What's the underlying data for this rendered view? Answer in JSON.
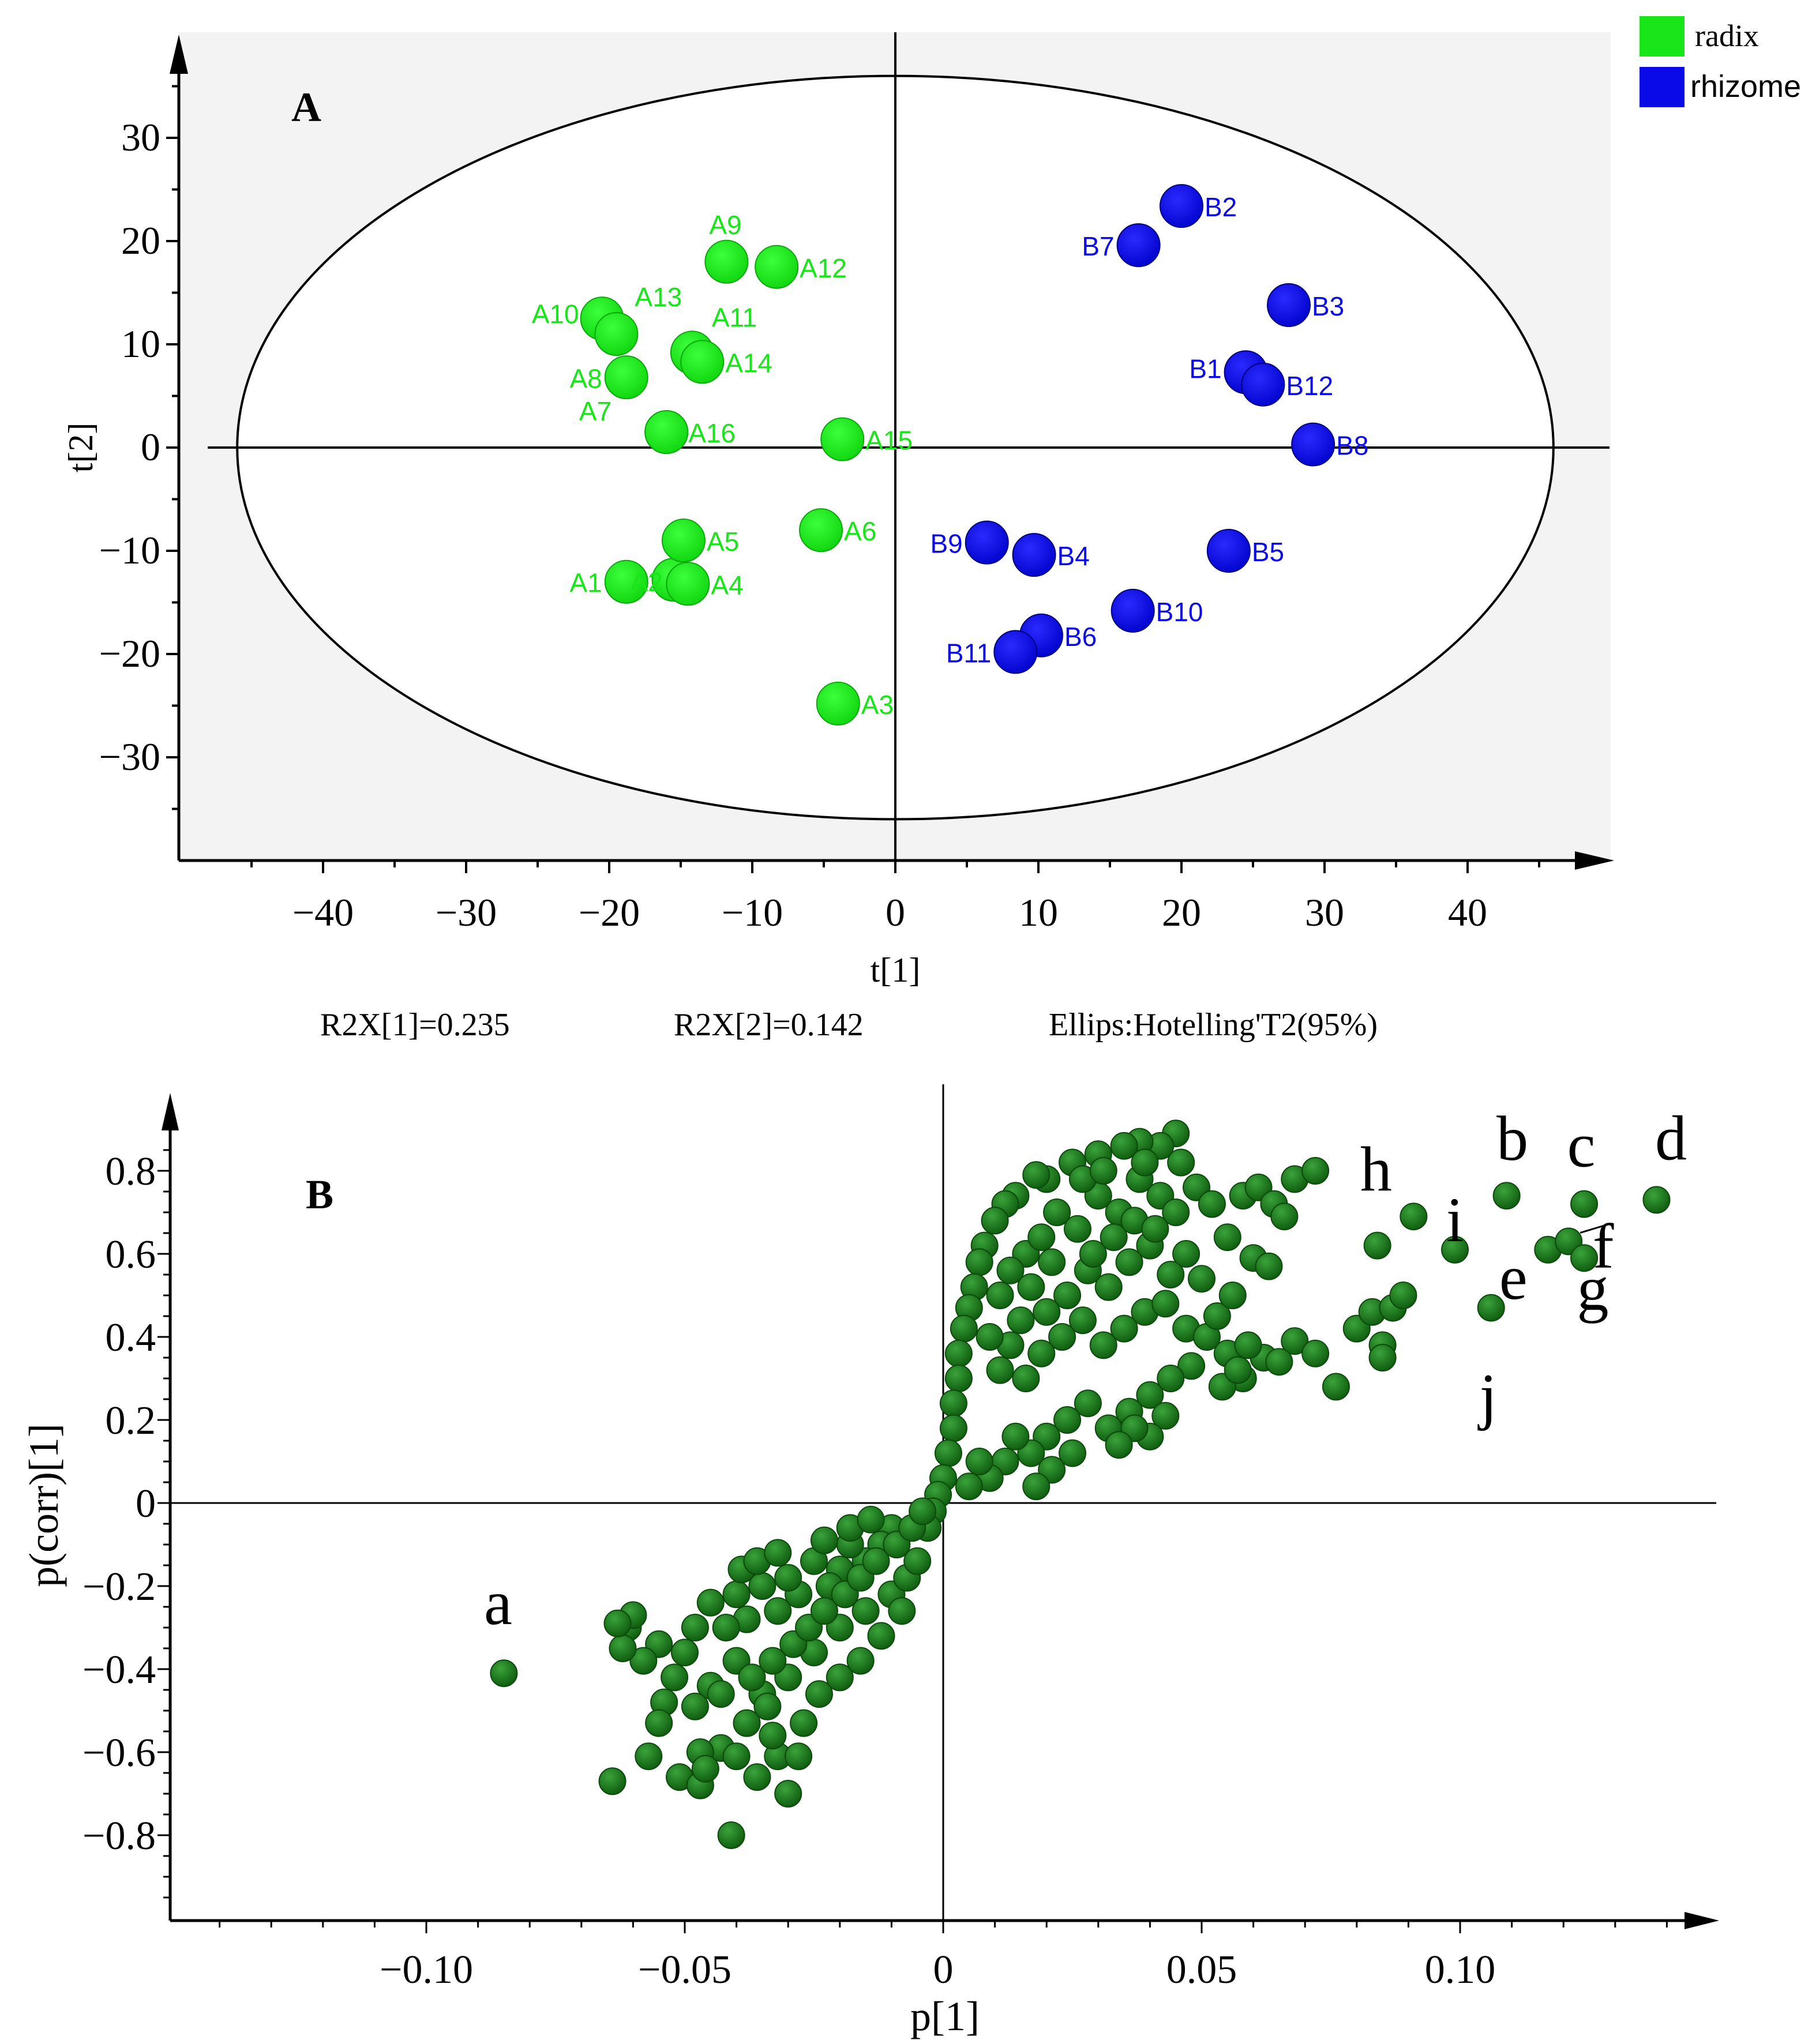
{
  "legend": {
    "items": [
      {
        "label": "radix",
        "color": "#18e618"
      },
      {
        "label": "rhizome",
        "color": "#0a0ae8"
      }
    ]
  },
  "panel_a_footer": {
    "r2x1": "R2X[1]=0.235",
    "r2x2": "R2X[2]=0.142",
    "ellipse": "Ellips:Hotelling'T2(95%)"
  },
  "chart_data": [
    {
      "id": "A",
      "type": "scatter",
      "panel_label": "A",
      "xlabel": "t[1]",
      "ylabel": "t[2]",
      "xlim": [
        -50,
        50
      ],
      "ylim": [
        -40,
        37
      ],
      "xticks": [
        -40,
        -30,
        -20,
        -10,
        0,
        10,
        20,
        30,
        40
      ],
      "xtick_labels": [
        "−40",
        "−30",
        "−20",
        "−10",
        "0",
        "10",
        "20",
        "30",
        "40"
      ],
      "yticks": [
        30,
        20,
        10,
        0,
        -10,
        -20,
        -30
      ],
      "ytick_labels": [
        "30",
        "20",
        "10",
        "0",
        "−10",
        "−20",
        "−30"
      ],
      "ellipse": {
        "rx": 46,
        "ry": 36
      },
      "series": [
        {
          "name": "radix",
          "color": "#18e618",
          "points": [
            {
              "label": "A1",
              "x": -18.8,
              "y": -13.0
            },
            {
              "label": "A2",
              "x": -15.5,
              "y": -12.8
            },
            {
              "label": "A3",
              "x": -4.0,
              "y": -24.8
            },
            {
              "label": "A4",
              "x": -14.5,
              "y": -13.2
            },
            {
              "label": "A5",
              "x": -14.8,
              "y": -9.0
            },
            {
              "label": "A6",
              "x": -5.2,
              "y": -8.0
            },
            {
              "label": "A7",
              "x": -16.0,
              "y": 1.5
            },
            {
              "label": "A8",
              "x": -18.8,
              "y": 6.8
            },
            {
              "label": "A9",
              "x": -11.8,
              "y": 18.0
            },
            {
              "label": "A10",
              "x": -20.5,
              "y": 12.5
            },
            {
              "label": "A11",
              "x": -14.2,
              "y": 9.2
            },
            {
              "label": "A12",
              "x": -8.3,
              "y": 17.5
            },
            {
              "label": "A13",
              "x": -19.5,
              "y": 11.0
            },
            {
              "label": "A14",
              "x": -13.5,
              "y": 8.3
            },
            {
              "label": "A15",
              "x": -3.7,
              "y": 0.8
            },
            {
              "label": "A16",
              "x": -16.0,
              "y": 1.5
            }
          ]
        },
        {
          "name": "rhizome",
          "color": "#0a0ae8",
          "points": [
            {
              "label": "B1",
              "x": 24.5,
              "y": 7.3
            },
            {
              "label": "B2",
              "x": 20.0,
              "y": 23.4
            },
            {
              "label": "B3",
              "x": 27.5,
              "y": 13.8
            },
            {
              "label": "B4",
              "x": 9.7,
              "y": -10.4
            },
            {
              "label": "B5",
              "x": 23.3,
              "y": -10.0
            },
            {
              "label": "B6",
              "x": 10.2,
              "y": -18.2
            },
            {
              "label": "B7",
              "x": 17.0,
              "y": 19.6
            },
            {
              "label": "B8",
              "x": 29.2,
              "y": 0.3
            },
            {
              "label": "B9",
              "x": 6.4,
              "y": -9.2
            },
            {
              "label": "B10",
              "x": 16.6,
              "y": -15.8
            },
            {
              "label": "B11",
              "x": 8.4,
              "y": -19.8
            },
            {
              "label": "B12",
              "x": 25.7,
              "y": 6.1
            }
          ]
        }
      ]
    },
    {
      "id": "B",
      "type": "scatter",
      "panel_label": "B",
      "xlabel": "p[1]",
      "ylabel": "p(corr)[1]",
      "xlim": [
        -0.15,
        0.15
      ],
      "ylim": [
        -1.0,
        0.96
      ],
      "xticks": [
        -0.1,
        -0.05,
        0,
        0.05,
        0.1
      ],
      "xtick_labels": [
        "−0.10",
        "−0.05",
        "0",
        "0.05",
        "0.10"
      ],
      "yticks": [
        0.8,
        0.6,
        0.4,
        0.2,
        0,
        -0.2,
        -0.4,
        -0.6,
        -0.8
      ],
      "ytick_labels": [
        "0.8",
        "0.6",
        "0.4",
        "0.2",
        "0",
        "−0.2",
        "−0.4",
        "−0.6",
        "−0.8"
      ],
      "marker_color": "#1e7a1e",
      "labeled_points": [
        {
          "label": "a",
          "x": -0.085,
          "y": -0.41
        },
        {
          "label": "b",
          "x": 0.109,
          "y": 0.74
        },
        {
          "label": "c",
          "x": 0.124,
          "y": 0.72
        },
        {
          "label": "d",
          "x": 0.138,
          "y": 0.73
        },
        {
          "label": "e",
          "x": 0.117,
          "y": 0.61
        },
        {
          "label": "f",
          "x": 0.121,
          "y": 0.63
        },
        {
          "label": "g",
          "x": 0.124,
          "y": 0.59
        },
        {
          "label": "h",
          "x": 0.091,
          "y": 0.69
        },
        {
          "label": "i",
          "x": 0.099,
          "y": 0.61
        },
        {
          "label": "j",
          "x": 0.106,
          "y": 0.47
        }
      ],
      "points": [
        [
          0.045,
          0.89
        ],
        [
          0.042,
          0.86
        ],
        [
          0.038,
          0.87
        ],
        [
          0.035,
          0.86
        ],
        [
          0.03,
          0.84
        ],
        [
          0.025,
          0.82
        ],
        [
          0.02,
          0.78
        ],
        [
          0.018,
          0.79
        ],
        [
          0.014,
          0.74
        ],
        [
          0.012,
          0.72
        ],
        [
          0.01,
          0.68
        ],
        [
          0.008,
          0.62
        ],
        [
          0.007,
          0.58
        ],
        [
          0.006,
          0.52
        ],
        [
          0.005,
          0.47
        ],
        [
          0.004,
          0.42
        ],
        [
          0.003,
          0.36
        ],
        [
          0.003,
          0.3
        ],
        [
          0.002,
          0.24
        ],
        [
          0.002,
          0.18
        ],
        [
          0.001,
          0.12
        ],
        [
          0.0,
          0.06
        ],
        [
          -0.001,
          0.02
        ],
        [
          -0.002,
          -0.02
        ],
        [
          -0.003,
          -0.06
        ],
        [
          0.022,
          0.7
        ],
        [
          0.026,
          0.66
        ],
        [
          0.03,
          0.74
        ],
        [
          0.034,
          0.7
        ],
        [
          0.038,
          0.78
        ],
        [
          0.042,
          0.74
        ],
        [
          0.046,
          0.82
        ],
        [
          0.049,
          0.76
        ],
        [
          0.052,
          0.72
        ],
        [
          0.055,
          0.64
        ],
        [
          0.058,
          0.74
        ],
        [
          0.061,
          0.76
        ],
        [
          0.064,
          0.72
        ],
        [
          0.068,
          0.78
        ],
        [
          0.072,
          0.8
        ],
        [
          0.066,
          0.69
        ],
        [
          0.06,
          0.59
        ],
        [
          0.063,
          0.57
        ],
        [
          0.05,
          0.54
        ],
        [
          0.047,
          0.6
        ],
        [
          0.044,
          0.55
        ],
        [
          0.04,
          0.62
        ],
        [
          0.036,
          0.58
        ],
        [
          0.032,
          0.52
        ],
        [
          0.028,
          0.56
        ],
        [
          0.024,
          0.5
        ],
        [
          0.02,
          0.46
        ],
        [
          0.017,
          0.52
        ],
        [
          0.015,
          0.44
        ],
        [
          0.013,
          0.38
        ],
        [
          0.011,
          0.32
        ],
        [
          0.009,
          0.4
        ],
        [
          0.016,
          0.3
        ],
        [
          0.019,
          0.36
        ],
        [
          0.023,
          0.4
        ],
        [
          0.027,
          0.44
        ],
        [
          0.031,
          0.38
        ],
        [
          0.035,
          0.42
        ],
        [
          0.039,
          0.46
        ],
        [
          0.043,
          0.48
        ],
        [
          0.047,
          0.42
        ],
        [
          0.051,
          0.4
        ],
        [
          0.055,
          0.36
        ],
        [
          0.058,
          0.3
        ],
        [
          0.062,
          0.35
        ],
        [
          0.054,
          0.28
        ],
        [
          0.048,
          0.33
        ],
        [
          0.044,
          0.3
        ],
        [
          0.04,
          0.26
        ],
        [
          0.036,
          0.22
        ],
        [
          0.032,
          0.18
        ],
        [
          0.028,
          0.24
        ],
        [
          0.024,
          0.2
        ],
        [
          0.02,
          0.16
        ],
        [
          0.017,
          0.12
        ],
        [
          0.014,
          0.16
        ],
        [
          0.012,
          0.1
        ],
        [
          0.009,
          0.06
        ],
        [
          0.007,
          0.1
        ],
        [
          0.005,
          0.04
        ],
        [
          0.043,
          0.21
        ],
        [
          0.04,
          0.16
        ],
        [
          0.037,
          0.18
        ],
        [
          0.034,
          0.14
        ],
        [
          0.025,
          0.12
        ],
        [
          0.021,
          0.08
        ],
        [
          0.018,
          0.04
        ],
        [
          0.029,
          0.6
        ],
        [
          0.033,
          0.64
        ],
        [
          0.037,
          0.68
        ],
        [
          0.041,
          0.66
        ],
        [
          0.045,
          0.7
        ],
        [
          0.027,
          0.78
        ],
        [
          0.031,
          0.8
        ],
        [
          0.039,
          0.82
        ],
        [
          0.016,
          0.6
        ],
        [
          0.019,
          0.64
        ],
        [
          0.013,
          0.56
        ],
        [
          0.011,
          0.5
        ],
        [
          0.021,
          0.58
        ],
        [
          0.068,
          0.39
        ],
        [
          0.072,
          0.36
        ],
        [
          0.076,
          0.28
        ],
        [
          0.08,
          0.42
        ],
        [
          0.083,
          0.46
        ],
        [
          0.087,
          0.47
        ],
        [
          0.089,
          0.5
        ],
        [
          0.085,
          0.38
        ],
        [
          0.085,
          0.35
        ],
        [
          0.084,
          0.62
        ],
        [
          0.065,
          0.34
        ],
        [
          0.059,
          0.38
        ],
        [
          0.057,
          0.32
        ],
        [
          0.053,
          0.45
        ],
        [
          0.056,
          0.5
        ],
        [
          -0.01,
          -0.06
        ],
        [
          -0.012,
          -0.1
        ],
        [
          -0.015,
          -0.14
        ],
        [
          -0.018,
          -0.1
        ],
        [
          -0.02,
          -0.16
        ],
        [
          -0.022,
          -0.2
        ],
        [
          -0.025,
          -0.14
        ],
        [
          -0.028,
          -0.22
        ],
        [
          -0.03,
          -0.18
        ],
        [
          -0.032,
          -0.26
        ],
        [
          -0.035,
          -0.2
        ],
        [
          -0.038,
          -0.28
        ],
        [
          -0.04,
          -0.22
        ],
        [
          -0.042,
          -0.3
        ],
        [
          -0.045,
          -0.24
        ],
        [
          -0.048,
          -0.3
        ],
        [
          -0.05,
          -0.36
        ],
        [
          -0.052,
          -0.42
        ],
        [
          -0.055,
          -0.34
        ],
        [
          -0.058,
          -0.38
        ],
        [
          -0.061,
          -0.3
        ],
        [
          -0.062,
          -0.35
        ],
        [
          -0.06,
          -0.27
        ],
        [
          -0.063,
          -0.29
        ],
        [
          -0.054,
          -0.48
        ],
        [
          -0.045,
          -0.44
        ],
        [
          -0.04,
          -0.38
        ],
        [
          -0.035,
          -0.46
        ],
        [
          -0.03,
          -0.42
        ],
        [
          -0.025,
          -0.36
        ],
        [
          -0.02,
          -0.3
        ],
        [
          -0.015,
          -0.26
        ],
        [
          -0.01,
          -0.22
        ],
        [
          -0.007,
          -0.18
        ],
        [
          -0.005,
          -0.14
        ],
        [
          -0.008,
          -0.26
        ],
        [
          -0.012,
          -0.32
        ],
        [
          -0.016,
          -0.38
        ],
        [
          -0.02,
          -0.42
        ],
        [
          -0.024,
          -0.46
        ],
        [
          -0.027,
          -0.53
        ],
        [
          -0.034,
          -0.49
        ],
        [
          -0.038,
          -0.53
        ],
        [
          -0.043,
          -0.46
        ],
        [
          -0.048,
          -0.49
        ],
        [
          -0.057,
          -0.61
        ],
        [
          -0.064,
          -0.67
        ],
        [
          -0.051,
          -0.66
        ],
        [
          -0.047,
          -0.68
        ],
        [
          -0.041,
          -0.8
        ],
        [
          -0.036,
          -0.66
        ],
        [
          -0.032,
          -0.61
        ],
        [
          -0.03,
          -0.7
        ],
        [
          -0.033,
          -0.56
        ],
        [
          -0.028,
          -0.61
        ],
        [
          -0.043,
          -0.59
        ],
        [
          -0.047,
          -0.6
        ],
        [
          -0.055,
          -0.53
        ],
        [
          -0.046,
          -0.64
        ],
        [
          -0.04,
          -0.61
        ],
        [
          -0.037,
          -0.42
        ],
        [
          -0.033,
          -0.38
        ],
        [
          -0.029,
          -0.34
        ],
        [
          -0.026,
          -0.3
        ],
        [
          -0.023,
          -0.26
        ],
        [
          -0.019,
          -0.22
        ],
        [
          -0.016,
          -0.18
        ],
        [
          -0.013,
          -0.14
        ],
        [
          -0.009,
          -0.1
        ],
        [
          -0.006,
          -0.06
        ],
        [
          -0.004,
          -0.02
        ],
        [
          -0.039,
          -0.16
        ],
        [
          -0.036,
          -0.14
        ],
        [
          -0.032,
          -0.12
        ],
        [
          -0.023,
          -0.09
        ],
        [
          -0.018,
          -0.06
        ],
        [
          -0.014,
          -0.04
        ]
      ]
    }
  ]
}
